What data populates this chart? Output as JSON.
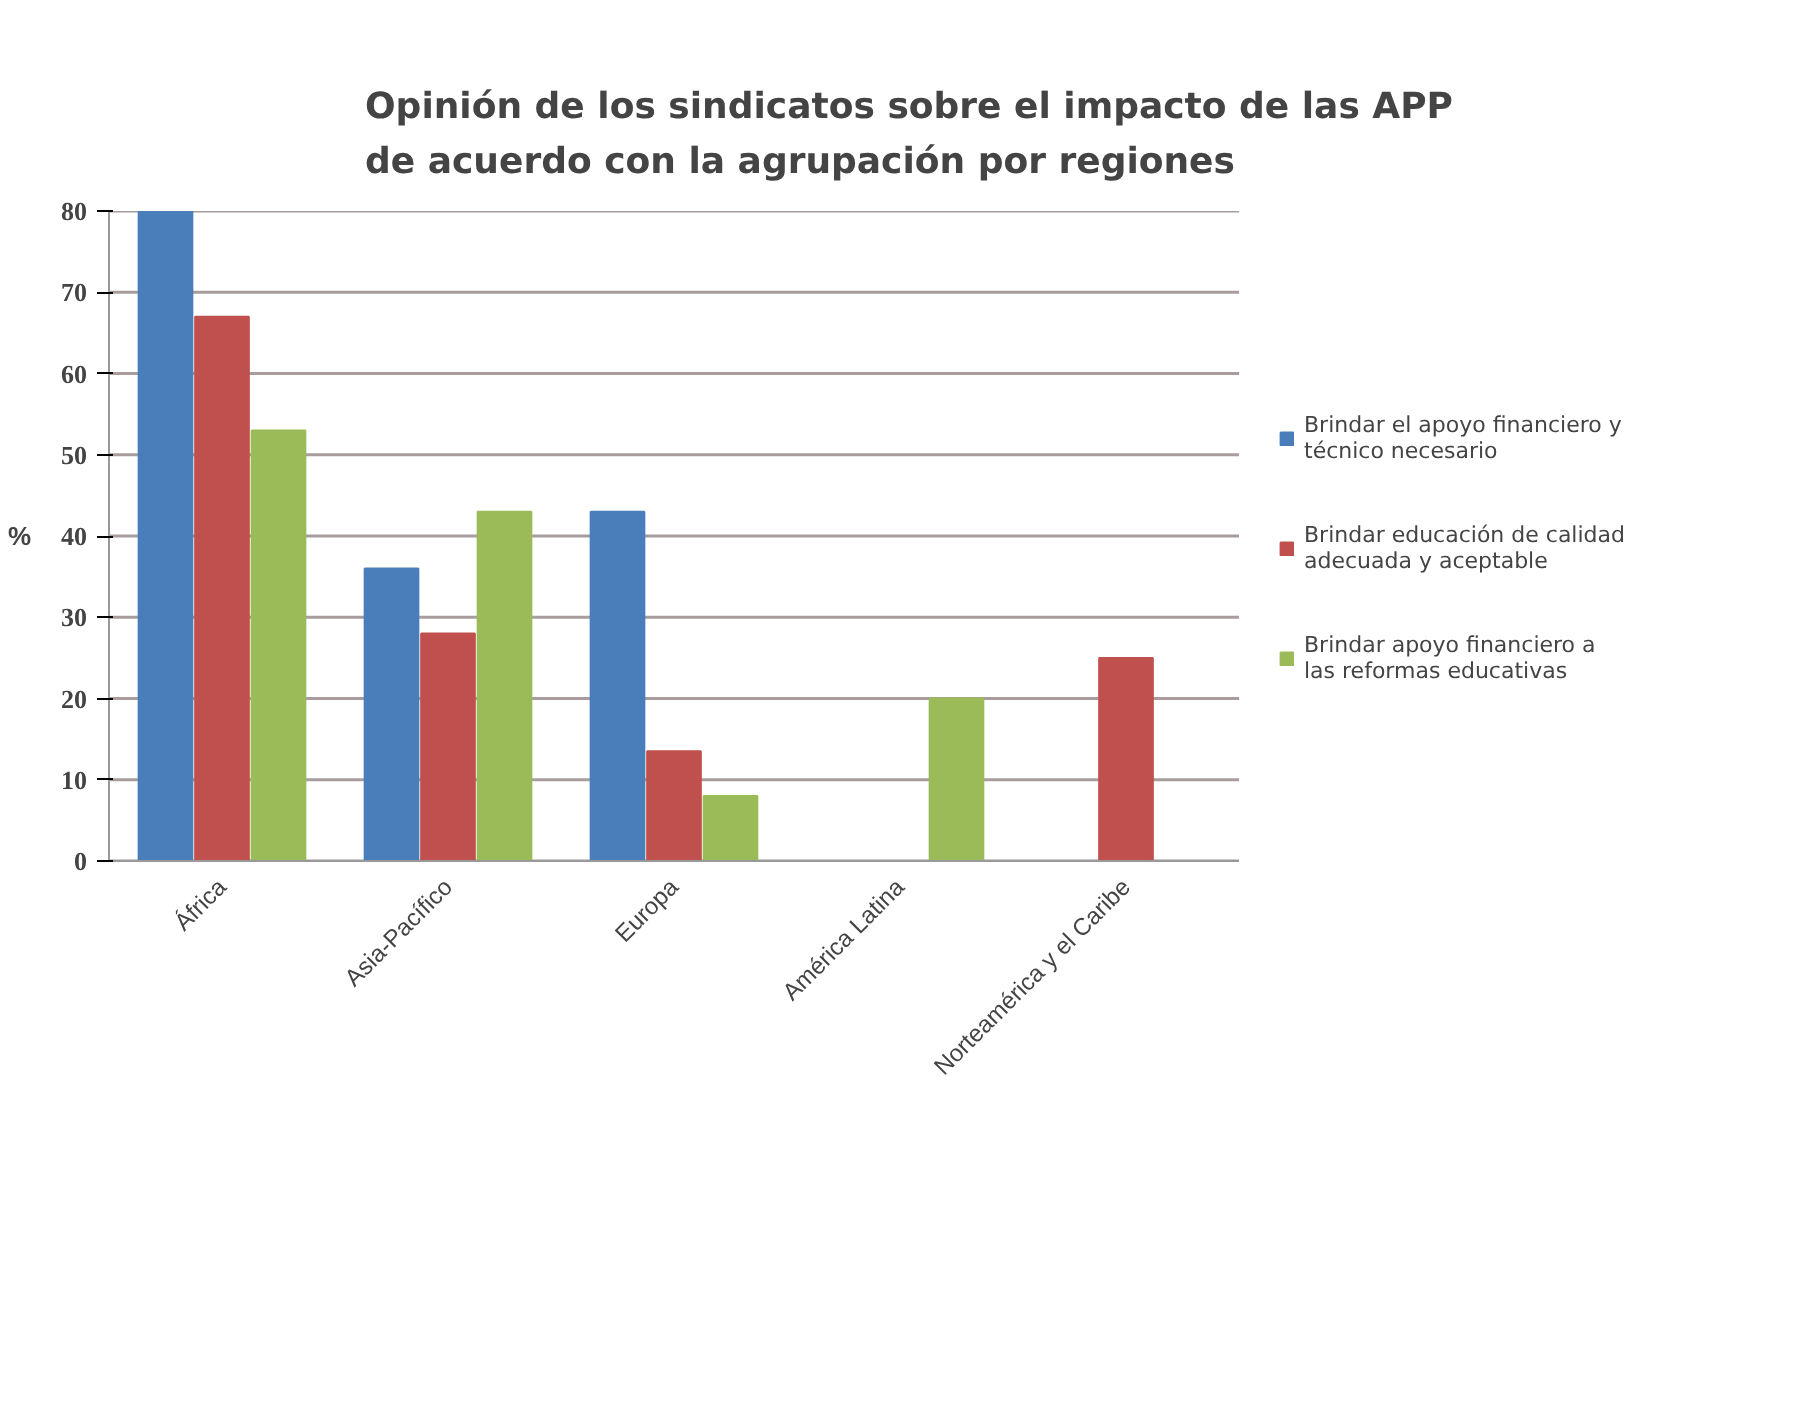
{
  "chart_data": {
    "type": "bar",
    "title": "Opinión de los sindicatos sobre el impacto de las APP de acuerdo con la agrupación por regiones",
    "ylabel": "%",
    "categories": [
      "África",
      "Asia-Pacífico",
      "Europa",
      "América Latina",
      "Norteamérica y el Caribe"
    ],
    "series": [
      {
        "name": "Brindar el apoyo financiero y técnico necesario",
        "color": "#4a7ebb",
        "values": [
          80,
          36,
          43,
          0,
          0
        ]
      },
      {
        "name": "Brindar educación de calidad adecuada y aceptable",
        "color": "#c0504d",
        "values": [
          67,
          28,
          13.5,
          0,
          25
        ]
      },
      {
        "name": "Brindar apoyo financiero a las reformas educativas",
        "color": "#9bbb59",
        "values": [
          53,
          43,
          8,
          20,
          0
        ]
      }
    ],
    "ylim": [
      0,
      80
    ],
    "yticks": [
      0,
      10,
      20,
      30,
      40,
      50,
      60,
      70,
      80
    ],
    "grid": "y",
    "legend": "right"
  }
}
